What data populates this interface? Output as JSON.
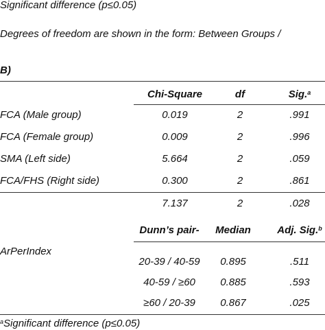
{
  "notes": [
    "Significant difference (p≤0.05)",
    "Degrees of freedom are shown in the form: Between Groups /"
  ],
  "section_label": "B)",
  "table1": {
    "headers": [
      "Chi-Square",
      "df",
      "Sig."
    ],
    "header_sup": "a",
    "rows": [
      [
        "FCA (Male group)",
        "0.019",
        "2",
        ".991"
      ],
      [
        "FCA (Female group)",
        "0.009",
        "2",
        ".996"
      ],
      [
        "SMA (Left side)",
        "5.664",
        "2",
        ".059"
      ],
      [
        "FCA/FHS (Right side)",
        "0.300",
        "2",
        ".861"
      ]
    ],
    "total": [
      "7.137",
      "2",
      ".028"
    ]
  },
  "table2": {
    "headers": [
      "Dunn’s pair-",
      "Median",
      "Adj. Sig."
    ],
    "header_sup": "b",
    "row_label": "ArPerIndex",
    "rows": [
      [
        "20-39 / 40-59",
        "0.895",
        ".511"
      ],
      [
        "40-59 / ≥60",
        "0.885",
        ".593"
      ],
      [
        "≥60 / 20-39",
        "0.867",
        ".025"
      ]
    ]
  },
  "footnote": {
    "sup": "a",
    "text": "Significant difference (p≤0.05)"
  }
}
